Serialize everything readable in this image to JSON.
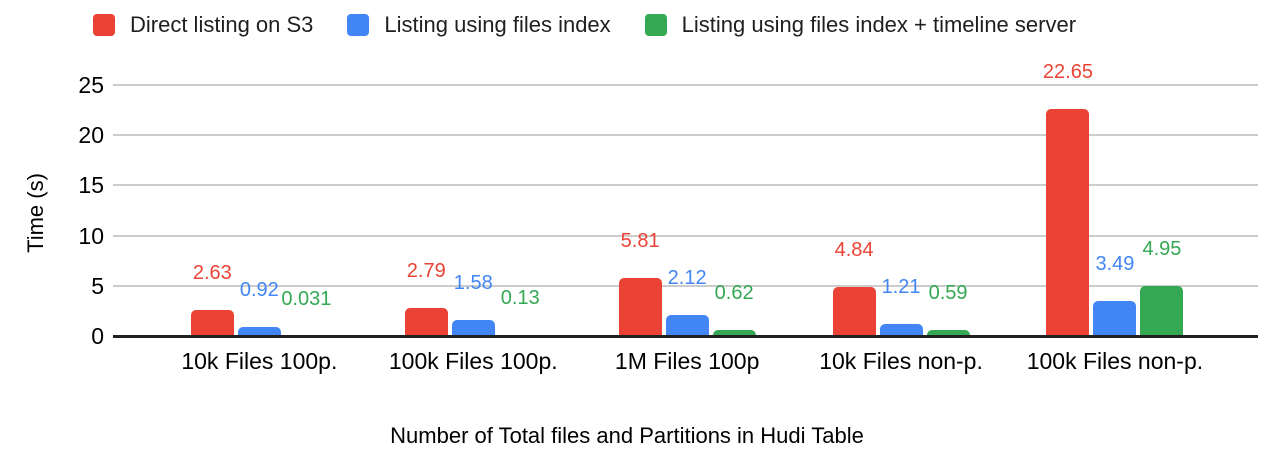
{
  "chart_data": {
    "type": "bar",
    "title": "",
    "xlabel": "Number of Total files and Partitions in Hudi Table",
    "ylabel": "Time (s)",
    "categories": [
      "10k Files 100p.",
      "100k Files 100p.",
      "1M Files 100p",
      "10k Files non-p.",
      "100k Files non-p."
    ],
    "series": [
      {
        "name": "Direct listing on S3",
        "color": "#EA4335",
        "values": [
          2.63,
          2.79,
          5.81,
          4.84,
          22.65
        ],
        "labels": [
          "2.63",
          "2.79",
          "5.81",
          "4.84",
          "22.65"
        ]
      },
      {
        "name": "Listing using files index",
        "color": "#4285F4",
        "values": [
          0.92,
          1.58,
          2.12,
          1.21,
          3.49
        ],
        "labels": [
          "0.92",
          "1.58",
          "2.12",
          "1.21",
          "3.49"
        ]
      },
      {
        "name": "Listing using files index + timeline server",
        "color": "#34A853",
        "values": [
          0.031,
          0.13,
          0.62,
          0.59,
          4.95
        ],
        "labels": [
          "0.031",
          "0.13",
          "0.62",
          "0.59",
          "4.95"
        ]
      }
    ],
    "y_ticks": [
      0,
      5,
      10,
      15,
      20,
      25
    ],
    "ylim": [
      0,
      25
    ],
    "grid": true,
    "legend_position": "top",
    "colors": {
      "gridline": "#cccccc",
      "axis_line": "#212121",
      "axis_text": "#000000",
      "legend_text": "#1f1f1f",
      "background": "#ffffff"
    }
  }
}
